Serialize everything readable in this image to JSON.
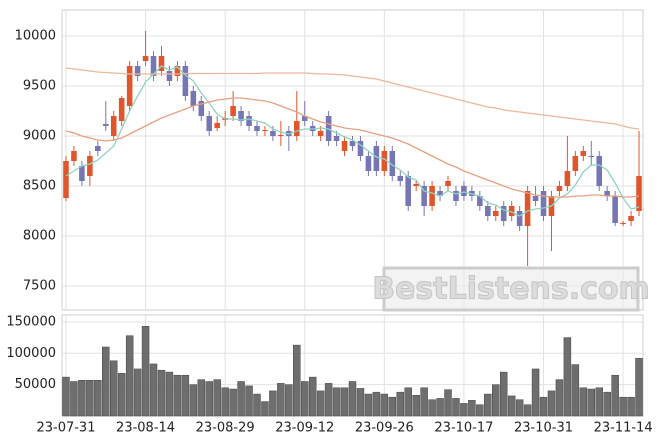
{
  "chart_data": {
    "type": "candlestick",
    "watermark": "BestListens.com",
    "categories": [
      "23-07-31",
      null,
      null,
      null,
      null,
      null,
      null,
      null,
      null,
      null,
      "23-08-14",
      null,
      null,
      null,
      null,
      null,
      null,
      null,
      null,
      null,
      "23-08-29",
      null,
      null,
      null,
      null,
      null,
      null,
      null,
      null,
      null,
      "23-09-12",
      null,
      null,
      null,
      null,
      null,
      null,
      null,
      null,
      null,
      "23-09-26",
      null,
      null,
      null,
      null,
      null,
      null,
      null,
      null,
      null,
      "23-10-17",
      null,
      null,
      null,
      null,
      null,
      null,
      null,
      null,
      null,
      "23-10-31",
      null,
      null,
      null,
      null,
      null,
      null,
      null,
      null,
      null,
      "23-11-14",
      null,
      null
    ],
    "open": [
      8380,
      8750,
      8700,
      8600,
      8900,
      9120,
      9000,
      9150,
      9300,
      9700,
      9750,
      9800,
      9650,
      9650,
      9600,
      9700,
      9450,
      9350,
      9200,
      9080,
      9160,
      9200,
      9250,
      9200,
      9100,
      9050,
      9050,
      9000,
      9050,
      9000,
      9200,
      9100,
      9000,
      9200,
      9000,
      8850,
      8950,
      8950,
      8800,
      8900,
      8650,
      8850,
      8600,
      8600,
      8500,
      8500,
      8300,
      8450,
      8500,
      8450,
      8500,
      8450,
      8400,
      8300,
      8200,
      8300,
      8200,
      8250,
      8100,
      8400,
      8450,
      8200,
      8450,
      8500,
      8650,
      8800,
      8800,
      8800,
      8450,
      8400,
      8120,
      8150,
      8250
    ],
    "high": [
      8800,
      8900,
      8750,
      8850,
      8950,
      9350,
      9250,
      9400,
      9750,
      9750,
      10050,
      9850,
      9900,
      9700,
      9750,
      9750,
      9500,
      9400,
      9250,
      9200,
      9250,
      9450,
      9300,
      9250,
      9150,
      9100,
      9100,
      9150,
      9100,
      9450,
      9350,
      9150,
      9100,
      9250,
      9050,
      9000,
      9000,
      9000,
      8850,
      8950,
      8900,
      8900,
      8650,
      8650,
      8550,
      8550,
      8550,
      8500,
      8600,
      8500,
      8550,
      8500,
      8450,
      8350,
      8300,
      8350,
      8350,
      8300,
      8500,
      8500,
      8500,
      8450,
      8550,
      9000,
      8850,
      8900,
      8950,
      8850,
      8500,
      8450,
      8150,
      8250,
      9050
    ],
    "low": [
      8350,
      8700,
      8500,
      8500,
      8800,
      9050,
      8950,
      9100,
      9250,
      9550,
      9700,
      9550,
      9600,
      9500,
      9550,
      9350,
      9250,
      9150,
      9000,
      9050,
      9100,
      9150,
      9100,
      9050,
      9000,
      9000,
      8950,
      8900,
      8850,
      8950,
      9100,
      9000,
      8950,
      8900,
      8900,
      8800,
      8850,
      8750,
      8600,
      8600,
      8600,
      8550,
      8500,
      8250,
      8450,
      8200,
      8250,
      8350,
      8450,
      8300,
      8350,
      8350,
      8250,
      8150,
      8150,
      8100,
      8150,
      8050,
      7700,
      8300,
      8150,
      7850,
      8400,
      8450,
      8600,
      8750,
      8700,
      8450,
      8350,
      8100,
      8100,
      8100,
      8200
    ],
    "close": [
      8750,
      8850,
      8550,
      8800,
      8850,
      9100,
      9200,
      9380,
      9700,
      9600,
      9800,
      9600,
      9800,
      9550,
      9700,
      9400,
      9300,
      9200,
      9050,
      9130,
      9180,
      9300,
      9150,
      9100,
      9050,
      9060,
      9000,
      9010,
      9000,
      9150,
      9150,
      9050,
      9050,
      8950,
      8950,
      8950,
      8900,
      8800,
      8650,
      8650,
      8850,
      8600,
      8550,
      8300,
      8520,
      8300,
      8500,
      8400,
      8550,
      8350,
      8400,
      8400,
      8300,
      8200,
      8250,
      8150,
      8300,
      8100,
      8450,
      8350,
      8200,
      8400,
      8500,
      8650,
      8800,
      8850,
      8790,
      8500,
      8400,
      8130,
      8130,
      8200,
      8600
    ],
    "up_color": "#e0562c",
    "down_color": "#7676b4",
    "lines": [
      {
        "color": "#8fd4bf",
        "values": [
          8600,
          8650,
          8700,
          8720,
          8760,
          8830,
          8900,
          9070,
          9250,
          9400,
          9540,
          9620,
          9700,
          9660,
          9690,
          9610,
          9550,
          9430,
          9330,
          9220,
          9170,
          9170,
          9160,
          9170,
          9150,
          9130,
          9070,
          9040,
          9020,
          9050,
          9070,
          9070,
          9080,
          9070,
          9030,
          8990,
          8960,
          8910,
          8850,
          8790,
          8770,
          8710,
          8660,
          8590,
          8560,
          8450,
          8430,
          8400,
          8450,
          8420,
          8440,
          8420,
          8400,
          8330,
          8310,
          8260,
          8240,
          8200,
          8250,
          8270,
          8280,
          8300,
          8380,
          8420,
          8510,
          8640,
          8710,
          8710,
          8660,
          8530,
          8380,
          8270,
          8290
        ]
      },
      {
        "color": "#e8a080",
        "values": [
          9050,
          9030,
          9000,
          8980,
          8960,
          8950,
          8960,
          8980,
          9020,
          9060,
          9100,
          9140,
          9180,
          9210,
          9240,
          9270,
          9300,
          9320,
          9340,
          9360,
          9370,
          9380,
          9380,
          9370,
          9360,
          9350,
          9330,
          9300,
          9270,
          9240,
          9200,
          9170,
          9140,
          9120,
          9100,
          9080,
          9070,
          9060,
          9040,
          9020,
          9000,
          8980,
          8950,
          8920,
          8880,
          8840,
          8800,
          8760,
          8720,
          8690,
          8650,
          8620,
          8590,
          8560,
          8530,
          8500,
          8470,
          8450,
          8430,
          8410,
          8400,
          8390,
          8390,
          8390,
          8400,
          8400,
          8410,
          8410,
          8400,
          8400,
          8390,
          8390,
          8400
        ]
      },
      {
        "color": "#eab89a",
        "values": [
          9680,
          9670,
          9660,
          9650,
          9640,
          9635,
          9630,
          9625,
          9620,
          9620,
          9620,
          9620,
          9620,
          9620,
          9620,
          9625,
          9625,
          9625,
          9625,
          9625,
          9625,
          9625,
          9625,
          9625,
          9625,
          9630,
          9630,
          9630,
          9630,
          9630,
          9630,
          9625,
          9620,
          9620,
          9615,
          9610,
          9600,
          9590,
          9580,
          9570,
          9550,
          9530,
          9510,
          9490,
          9470,
          9450,
          9430,
          9410,
          9390,
          9370,
          9350,
          9330,
          9310,
          9290,
          9280,
          9260,
          9250,
          9240,
          9230,
          9220,
          9210,
          9200,
          9190,
          9180,
          9170,
          9160,
          9150,
          9140,
          9130,
          9120,
          9100,
          9080,
          9070
        ]
      }
    ],
    "ylim": [
      7260,
      10260
    ],
    "yticks": [
      7500,
      8000,
      8500,
      9000,
      9500,
      10000
    ],
    "volume": [
      62000,
      55000,
      57000,
      57000,
      57000,
      110000,
      88000,
      68000,
      128000,
      75000,
      143000,
      83000,
      73000,
      70000,
      65000,
      65000,
      50000,
      58000,
      55000,
      58000,
      45000,
      43000,
      55000,
      48000,
      35000,
      23000,
      40000,
      52000,
      50000,
      113000,
      55000,
      62000,
      40000,
      52000,
      45000,
      45000,
      55000,
      44000,
      35000,
      38000,
      35000,
      30000,
      38000,
      45000,
      33000,
      45000,
      26000,
      28000,
      42000,
      28000,
      20000,
      25000,
      18000,
      35000,
      50000,
      70000,
      32000,
      26000,
      18000,
      75000,
      30000,
      40000,
      58000,
      125000,
      82000,
      45000,
      43000,
      45000,
      38000,
      65000,
      30000,
      30000,
      92000
    ],
    "volume_color": "#6e6e6e",
    "volume_ylim": [
      0,
      161000
    ],
    "volume_yticks": [
      50000,
      100000,
      150000
    ],
    "grid": true
  }
}
